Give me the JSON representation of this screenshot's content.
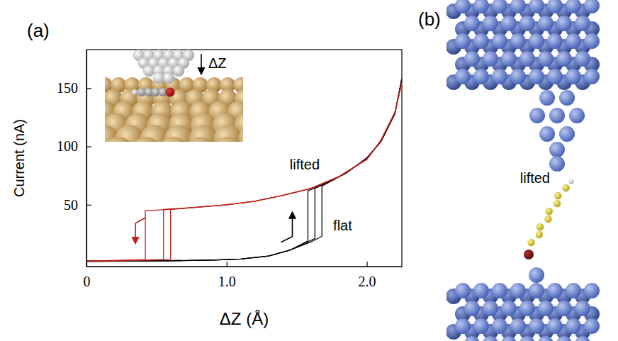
{
  "chart_data": {
    "type": "line",
    "panel_label": "(a)",
    "x_label": "ΔZ (Å)",
    "y_label": "Current (nA)",
    "xlim": [
      0,
      2.25
    ],
    "ylim": [
      -3,
      183
    ],
    "xticks": [
      0,
      {
        "value": 1,
        "label": "1.0"
      },
      {
        "value": 2,
        "label": "2.0"
      }
    ],
    "yticks": [
      50,
      100,
      150
    ],
    "series": [
      {
        "color": "#000000",
        "x": [
          0,
          0.3,
          0.6,
          0.9,
          1.1,
          1.3,
          1.45,
          1.58,
          1.58,
          1.7,
          1.85,
          2.0,
          2.1,
          2.2,
          2.25
        ],
        "values": [
          1.5,
          1.7,
          2.0,
          2.6,
          3.5,
          6,
          11,
          19,
          62,
          68,
          77,
          90,
          104,
          128,
          158
        ]
      },
      {
        "color": "#000000",
        "x": [
          0,
          0.3,
          0.6,
          0.9,
          1.1,
          1.3,
          1.45,
          1.63,
          1.63,
          1.7,
          1.85,
          2.0,
          2.1,
          2.2,
          2.25
        ],
        "values": [
          1.5,
          1.7,
          2.0,
          2.6,
          3.5,
          6,
          11,
          21,
          64,
          68,
          77,
          90,
          104,
          128,
          158
        ]
      },
      {
        "color": "#000000",
        "x": [
          0,
          0.3,
          0.6,
          0.9,
          1.1,
          1.3,
          1.45,
          1.6,
          1.68,
          1.68,
          1.85,
          2.0,
          2.1,
          2.2,
          2.25
        ],
        "values": [
          1.5,
          1.7,
          2.0,
          2.6,
          3.5,
          6,
          11,
          18,
          23,
          66,
          77,
          90,
          104,
          128,
          158
        ]
      },
      {
        "color": "#c0201a",
        "x": [
          2.25,
          2.2,
          2.1,
          2.0,
          1.8,
          1.6,
          1.4,
          1.2,
          1.0,
          0.8,
          0.6,
          0.42,
          0.42,
          0.3,
          0.1,
          0
        ],
        "values": [
          155,
          129,
          105,
          89,
          74,
          64,
          58,
          53,
          50,
          48,
          46,
          45,
          3,
          2.5,
          2,
          1.8
        ]
      },
      {
        "color": "#c0201a",
        "x": [
          2.25,
          2.2,
          2.1,
          2.0,
          1.8,
          1.6,
          1.4,
          1.2,
          1.0,
          0.8,
          0.55,
          0.55,
          0.4,
          0.2,
          0
        ],
        "values": [
          155,
          129,
          105,
          89,
          74,
          64,
          58,
          53,
          50,
          48,
          46,
          3,
          2.5,
          2,
          1.8
        ]
      },
      {
        "color": "#c0201a",
        "x": [
          2.25,
          2.2,
          2.1,
          2.0,
          1.8,
          1.6,
          1.4,
          1.2,
          1.0,
          0.8,
          0.6,
          0.6,
          0.4,
          0.2,
          0
        ],
        "values": [
          155,
          129,
          105,
          89,
          74,
          64,
          58,
          53,
          50,
          48,
          46,
          3,
          2.5,
          2,
          1.8
        ]
      }
    ],
    "annotations": [
      {
        "text": "lifted",
        "x": 1.45,
        "y": 80
      },
      {
        "text": "flat",
        "x": 1.76,
        "y": 28
      }
    ],
    "inset_label": "ΔZ"
  },
  "diagram": {
    "panel_label": "(b)",
    "label": "lifted"
  }
}
